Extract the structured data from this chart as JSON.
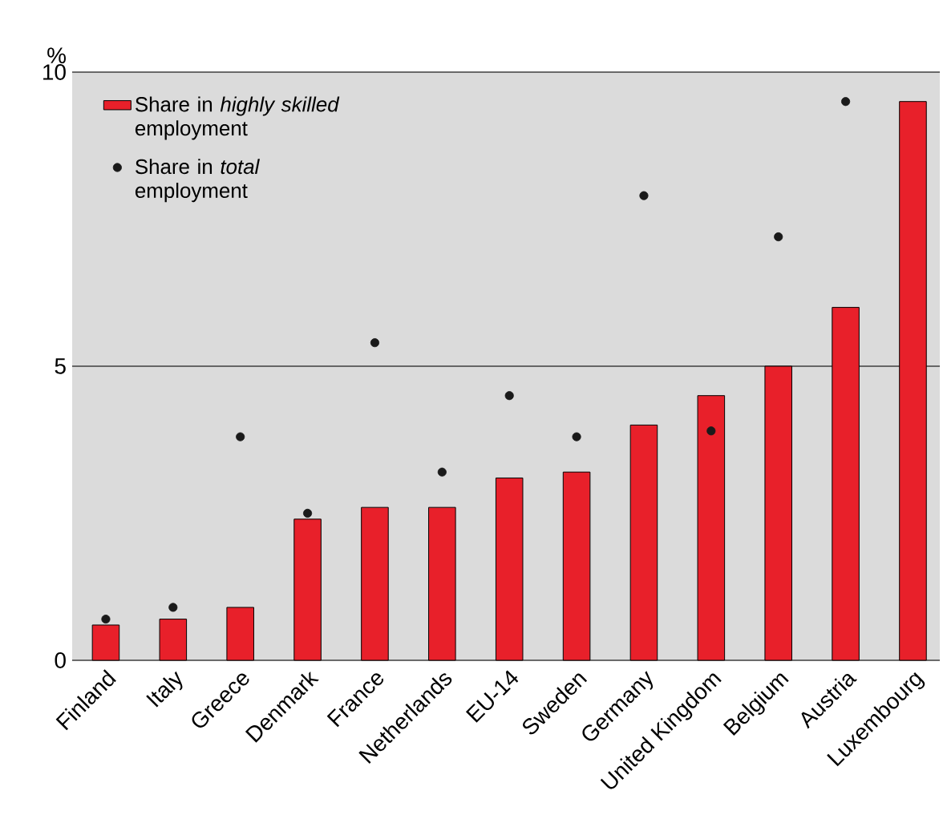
{
  "chart_data": {
    "type": "bar",
    "ylabel": "%",
    "categories": [
      "Finland",
      "Italy",
      "Greece",
      "Denmark",
      "France",
      "Netherlands",
      "EU-14",
      "Sweden",
      "Germany",
      "United Kingdom",
      "Belgium",
      "Austria",
      "Luxembourg"
    ],
    "series": [
      {
        "name": "Share in *highly skilled* employment",
        "color": "#e8202a",
        "values": [
          0.6,
          0.7,
          0.9,
          2.4,
          2.6,
          2.6,
          3.1,
          3.2,
          4.0,
          4.5,
          5.0,
          6.0,
          9.5
        ]
      },
      {
        "name": "Share in *total* employment",
        "type": "scatter",
        "marker": "circle",
        "color": "#1a1a1a",
        "values": [
          0.7,
          0.9,
          3.8,
          2.5,
          5.4,
          3.2,
          4.5,
          3.8,
          7.9,
          3.9,
          7.2,
          9.5,
          null
        ]
      }
    ],
    "ylim": [
      0,
      10
    ],
    "yticks": [
      0,
      5,
      10
    ],
    "grid": "y",
    "legend": "top left"
  }
}
